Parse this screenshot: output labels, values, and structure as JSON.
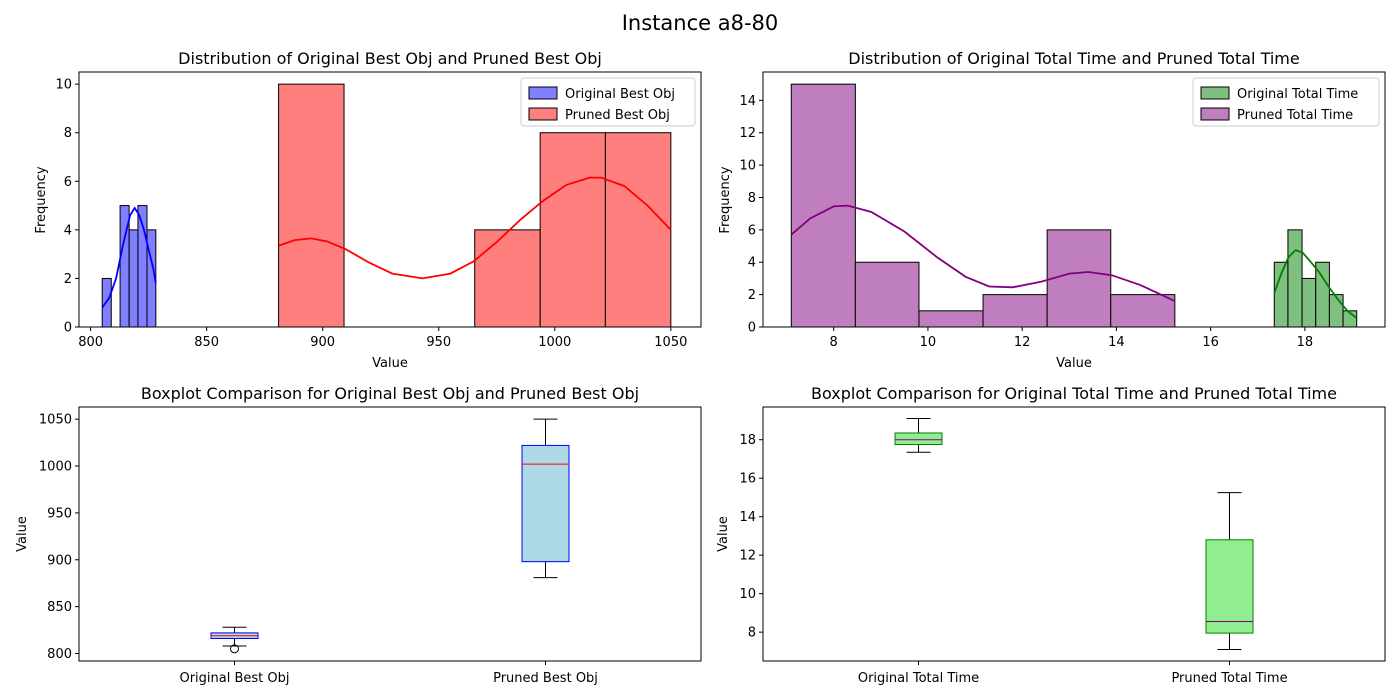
{
  "figure_title": "Instance a8-80",
  "chart_data": [
    {
      "id": "hist_obj",
      "type": "bar",
      "subtype": "histogram_with_kde",
      "title": "Distribution of Original Best Obj and Pruned Best Obj",
      "xlabel": "Value",
      "ylabel": "Frequency",
      "xlim": [
        795,
        1063
      ],
      "ylim": [
        0,
        10.5
      ],
      "xticks": [
        800,
        850,
        900,
        950,
        1000,
        1050
      ],
      "yticks": [
        0,
        2,
        4,
        6,
        8,
        10
      ],
      "legend": "top-right",
      "series": [
        {
          "name": "Original Best Obj",
          "color": "#7f7fff",
          "line_color": "#0000ff",
          "bins": [
            {
              "x0": 805,
              "x1": 808.9,
              "value": 2
            },
            {
              "x0": 808.9,
              "x1": 812.7,
              "value": 0
            },
            {
              "x0": 812.7,
              "x1": 816.6,
              "value": 5
            },
            {
              "x0": 816.6,
              "x1": 820.4,
              "value": 4
            },
            {
              "x0": 820.4,
              "x1": 824.3,
              "value": 5
            },
            {
              "x0": 824.3,
              "x1": 828.1,
              "value": 4
            }
          ],
          "kde": [
            [
              805,
              0.8
            ],
            [
              808,
              1.2
            ],
            [
              811,
              2.0
            ],
            [
              814,
              3.4
            ],
            [
              817,
              4.6
            ],
            [
              819,
              4.9
            ],
            [
              821,
              4.6
            ],
            [
              823,
              4.0
            ],
            [
              825,
              3.2
            ],
            [
              827,
              2.4
            ],
            [
              828.1,
              1.8
            ]
          ]
        },
        {
          "name": "Pruned Best Obj",
          "color": "#ff7f7f",
          "line_color": "#ff0000",
          "bins": [
            {
              "x0": 881,
              "x1": 909.2,
              "value": 10
            },
            {
              "x0": 909.2,
              "x1": 937.3,
              "value": 0
            },
            {
              "x0": 937.3,
              "x1": 965.5,
              "value": 0
            },
            {
              "x0": 965.5,
              "x1": 993.7,
              "value": 4
            },
            {
              "x0": 993.7,
              "x1": 1021.8,
              "value": 8
            },
            {
              "x0": 1021.8,
              "x1": 1050,
              "value": 8
            }
          ],
          "kde": [
            [
              881,
              3.35
            ],
            [
              888,
              3.58
            ],
            [
              895,
              3.65
            ],
            [
              902,
              3.52
            ],
            [
              910,
              3.2
            ],
            [
              920,
              2.65
            ],
            [
              930,
              2.2
            ],
            [
              943,
              2.0
            ],
            [
              955,
              2.2
            ],
            [
              965,
              2.7
            ],
            [
              975,
              3.5
            ],
            [
              985,
              4.4
            ],
            [
              995,
              5.2
            ],
            [
              1005,
              5.85
            ],
            [
              1015,
              6.15
            ],
            [
              1020,
              6.15
            ],
            [
              1030,
              5.8
            ],
            [
              1040,
              5.0
            ],
            [
              1050,
              4.0
            ]
          ]
        }
      ]
    },
    {
      "id": "hist_time",
      "type": "bar",
      "subtype": "histogram_with_kde",
      "title": "Distribution of Original Total Time and Pruned Total Time",
      "xlabel": "Value",
      "ylabel": "Frequency",
      "xlim": [
        6.5,
        19.7
      ],
      "ylim": [
        0,
        15.75
      ],
      "xticks": [
        8,
        10,
        12,
        14,
        16,
        18
      ],
      "yticks": [
        0,
        2,
        4,
        6,
        8,
        10,
        12,
        14
      ],
      "legend": "top-right",
      "series": [
        {
          "name": "Original Total Time",
          "color": "#7fbf7f",
          "line_color": "#008000",
          "bins": [
            {
              "x0": 17.35,
              "x1": 17.64,
              "value": 4
            },
            {
              "x0": 17.64,
              "x1": 17.94,
              "value": 6
            },
            {
              "x0": 17.94,
              "x1": 18.23,
              "value": 3
            },
            {
              "x0": 18.23,
              "x1": 18.52,
              "value": 4
            },
            {
              "x0": 18.52,
              "x1": 18.81,
              "value": 2
            },
            {
              "x0": 18.81,
              "x1": 19.1,
              "value": 1
            }
          ],
          "kde": [
            [
              17.35,
              2.1
            ],
            [
              17.5,
              3.3
            ],
            [
              17.65,
              4.3
            ],
            [
              17.8,
              4.75
            ],
            [
              17.95,
              4.6
            ],
            [
              18.1,
              4.1
            ],
            [
              18.3,
              3.4
            ],
            [
              18.5,
              2.5
            ],
            [
              18.7,
              1.7
            ],
            [
              18.9,
              1.0
            ],
            [
              19.1,
              0.55
            ]
          ]
        },
        {
          "name": "Pruned Total Time",
          "color": "#bf7fbf",
          "line_color": "#800080",
          "bins": [
            {
              "x0": 7.1,
              "x1": 8.46,
              "value": 15
            },
            {
              "x0": 8.46,
              "x1": 9.81,
              "value": 4
            },
            {
              "x0": 9.81,
              "x1": 11.17,
              "value": 1
            },
            {
              "x0": 11.17,
              "x1": 12.53,
              "value": 2
            },
            {
              "x0": 12.53,
              "x1": 13.88,
              "value": 6
            },
            {
              "x0": 13.88,
              "x1": 15.24,
              "value": 2
            }
          ],
          "kde": [
            [
              7.1,
              5.7
            ],
            [
              7.5,
              6.7
            ],
            [
              8.0,
              7.45
            ],
            [
              8.3,
              7.5
            ],
            [
              8.8,
              7.1
            ],
            [
              9.5,
              5.9
            ],
            [
              10.2,
              4.3
            ],
            [
              10.8,
              3.1
            ],
            [
              11.3,
              2.5
            ],
            [
              11.8,
              2.45
            ],
            [
              12.4,
              2.8
            ],
            [
              13.0,
              3.3
            ],
            [
              13.4,
              3.4
            ],
            [
              13.9,
              3.2
            ],
            [
              14.5,
              2.6
            ],
            [
              15.24,
              1.6
            ]
          ]
        }
      ]
    },
    {
      "id": "box_obj",
      "type": "boxplot",
      "title": "Boxplot Comparison for Original Best Obj and Pruned Best Obj",
      "xlabel": "",
      "ylabel": "Value",
      "ylim": [
        792,
        1063
      ],
      "yticks": [
        800,
        850,
        900,
        950,
        1000,
        1050
      ],
      "box_color": "#add8e6",
      "edge_color": "#0000ff",
      "median_color": "#ff0000",
      "boxes": [
        {
          "label": "Original Best Obj",
          "whisker_low": 808,
          "q1": 816,
          "median": 819,
          "q3": 822,
          "whisker_high": 828,
          "outliers": [
            805
          ]
        },
        {
          "label": "Pruned Best Obj",
          "whisker_low": 881,
          "q1": 898,
          "median": 1002,
          "q3": 1022,
          "whisker_high": 1050,
          "outliers": []
        }
      ]
    },
    {
      "id": "box_time",
      "type": "boxplot",
      "title": "Boxplot Comparison for Original Total Time and Pruned Total Time",
      "xlabel": "",
      "ylabel": "Value",
      "ylim": [
        6.5,
        19.7
      ],
      "yticks": [
        8,
        10,
        12,
        14,
        16,
        18
      ],
      "box_color": "#90ee90",
      "edge_color": "#008000",
      "median_color": "#800080",
      "boxes": [
        {
          "label": "Original Total Time",
          "whisker_low": 17.35,
          "q1": 17.75,
          "median": 18.0,
          "q3": 18.35,
          "whisker_high": 19.1,
          "outliers": []
        },
        {
          "label": "Pruned Total Time",
          "whisker_low": 7.1,
          "q1": 7.95,
          "median": 8.55,
          "q3": 12.8,
          "whisker_high": 15.25,
          "outliers": []
        }
      ]
    }
  ]
}
